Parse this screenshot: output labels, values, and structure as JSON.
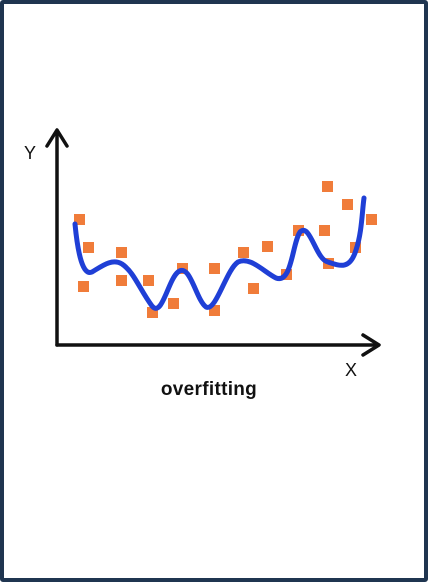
{
  "diagram": {
    "caption": "overfitting",
    "y_axis_label": "Y",
    "x_axis_label": "X",
    "colors": {
      "frame": "#1f3550",
      "axis": "#111111",
      "curve": "#1f3fd6",
      "points": "#f07c3a"
    },
    "data_points_count_shown": 24
  }
}
